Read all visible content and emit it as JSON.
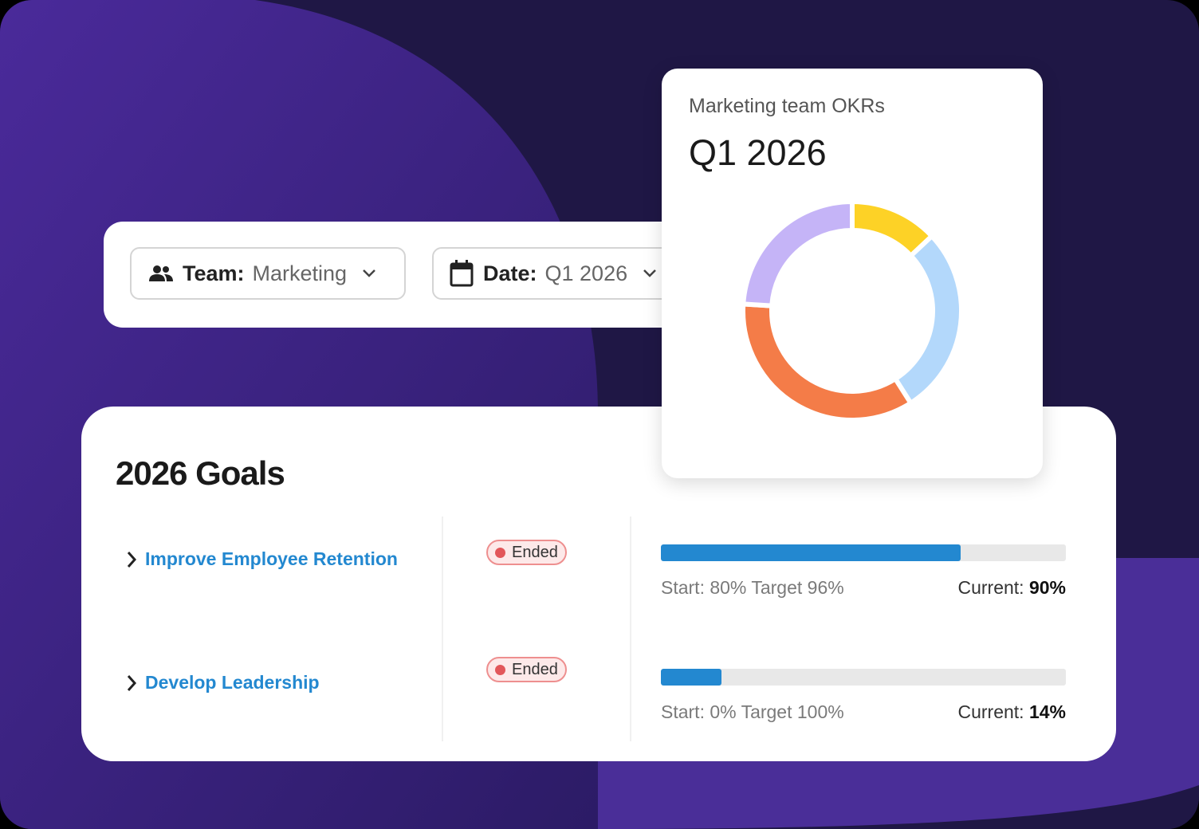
{
  "filters": {
    "team": {
      "label": "Team:",
      "value": "Marketing"
    },
    "date": {
      "label": "Date:",
      "value": "Q1 2026"
    }
  },
  "okr_card": {
    "subtitle": "Marketing team OKRs",
    "title": "Q1 2026",
    "donut": {
      "segments": [
        {
          "value": 13,
          "color": "#fdd226"
        },
        {
          "value": 28,
          "color": "#b3d8fb"
        },
        {
          "value": 35,
          "color": "#f47c48"
        },
        {
          "value": 24,
          "color": "#c5b4f7"
        }
      ]
    }
  },
  "goals": {
    "title": "2026 Goals",
    "rows": [
      {
        "name": "Improve Employee Retention",
        "status": "Ended",
        "progress": 74,
        "range": "Start: 80% Target 96%",
        "current_label": "Current:",
        "current": "90%"
      },
      {
        "name": "Develop Leadership",
        "status": "Ended",
        "progress": 15,
        "range": "Start: 0% Target 100%",
        "current_label": "Current:",
        "current": "14%"
      }
    ]
  }
}
